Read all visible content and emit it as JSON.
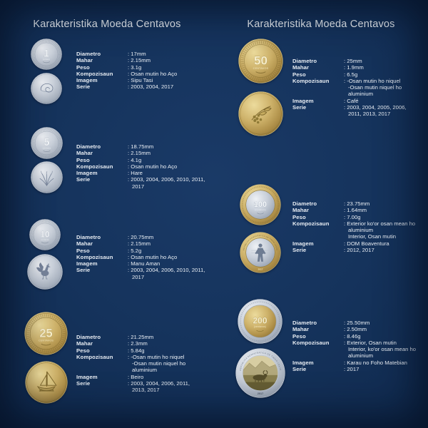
{
  "page": {
    "background_color": "#15335c",
    "title_color": "#f2f6fa",
    "silver_color": "#c6cdd7",
    "gold_color": "#cdb169"
  },
  "columns": [
    {
      "title": "Karakteristika Moeda Centavos",
      "coins": [
        {
          "id": "c1",
          "denomination": "1",
          "unit": "centavo",
          "style": "silver",
          "motif": "shell",
          "specs": [
            {
              "label": "Diametro",
              "value": ": 17mm"
            },
            {
              "label": "Mahar",
              "value": ": 2.15mm"
            },
            {
              "label": "Peso",
              "value": ": 3.1g"
            },
            {
              "label": "Kompozisaun",
              "value": ": Osan mutin ho Aço"
            },
            {
              "label": "Imagem",
              "value": ": Sipu Tasi"
            },
            {
              "label": "Serie",
              "value": ": 2003, 2004, 2017"
            }
          ]
        },
        {
          "id": "c5",
          "denomination": "5",
          "unit": "centavos",
          "style": "silver",
          "motif": "rice",
          "specs": [
            {
              "label": "Diametro",
              "value": ": 18.75mm"
            },
            {
              "label": "Mahar",
              "value": ": 2.15mm"
            },
            {
              "label": "Peso",
              "value": ": 4.1g"
            },
            {
              "label": "Kompozisaun",
              "value": ": Osan mutin ho Aço"
            },
            {
              "label": "Imagem",
              "value": ": Hare"
            },
            {
              "label": "Serie",
              "value": ": 2003, 2004, 2006, 2010, 2011,\n2017"
            }
          ]
        },
        {
          "id": "c10",
          "denomination": "10",
          "unit": "centavos",
          "style": "silver",
          "motif": "rooster",
          "specs": [
            {
              "label": "Diametro",
              "value": ": 20.75mm"
            },
            {
              "label": "Mahar",
              "value": ": 2.15mm"
            },
            {
              "label": "Peso",
              "value": ": 5.2g"
            },
            {
              "label": "Kompozisaun",
              "value": ": Osan mutin ho Aço"
            },
            {
              "label": "Imagem",
              "value": ": Manu Aman"
            },
            {
              "label": "Serie",
              "value": ": 2003, 2004, 2006, 2010, 2011,\n2017"
            }
          ]
        },
        {
          "id": "c25",
          "denomination": "25",
          "unit": "CENTAVOS",
          "style": "gold",
          "motif": "boat",
          "specs": [
            {
              "label": "Diametro",
              "value": ": 21.25mm"
            },
            {
              "label": "Mahar",
              "value": ": 2.3mm"
            },
            {
              "label": "Peso",
              "value": ": 5.84g"
            },
            {
              "label": "Kompozisaun",
              "value": ": -Osan mutin ho niquel\n-Osan mutin niquel ho\naluminium"
            },
            {
              "label": "Imagem",
              "value": ": Beiro"
            },
            {
              "label": "Serie",
              "value": ": 2003, 2004, 2006, 2011,\n2013, 2017"
            }
          ]
        }
      ]
    },
    {
      "title": "Karakteristika Moeda Centavos",
      "coins": [
        {
          "id": "c50",
          "denomination": "50",
          "unit": "CENTAVOS",
          "style": "gold",
          "motif": "coffee",
          "specs": [
            {
              "label": "Diametro",
              "value": ": 25mm"
            },
            {
              "label": "Mahar",
              "value": ": 1.9mm"
            },
            {
              "label": "Peso",
              "value": ": 6.5g"
            },
            {
              "label": "Kompozisaun",
              "value": ": -Osan mutin ho niquel\n-Osan mutin niquel ho\naluminium"
            },
            {
              "label": "Imagem",
              "value": ": Café"
            },
            {
              "label": "Serie",
              "value": ": 2003, 2004, 2005, 2006,\n2011, 2013, 2017"
            }
          ]
        },
        {
          "id": "c100",
          "denomination": "100",
          "unit": "(centavos)",
          "style": "bi-gold-ring",
          "motif": "figure",
          "rim_text": "REPÚBLICA DEMOCRÁTICA DE TIMOR-LESTE",
          "reverse_year": "2017",
          "specs": [
            {
              "label": "Diametro",
              "value": ": 23.75mm"
            },
            {
              "label": "Mahar",
              "value": ": 1.64mm"
            },
            {
              "label": "Peso",
              "value": ": 7.00g"
            },
            {
              "label": "Kompozisaun",
              "value": ": Exterior ko'or osan mean ho\naluminium\nInterior, Osan mutin"
            },
            {
              "label": "Imagem",
              "value": ": DOM Boaventura"
            },
            {
              "label": "Serie",
              "value": ": 2012, 2017"
            }
          ]
        },
        {
          "id": "c200",
          "denomination": "200",
          "unit": "(centavos)",
          "style": "bi-silver-ring",
          "motif": "buffalo",
          "rim_text": "REPÚBLICA DEMOCRÁTICA DE TIMOR-LESTE",
          "reverse_year": "2017",
          "specs": [
            {
              "label": "Diametro",
              "value": ": 25.50mm"
            },
            {
              "label": "Mahar",
              "value": ": 2.50mm"
            },
            {
              "label": "Peso",
              "value": ": 8.46g"
            },
            {
              "label": "Kompozisaun",
              "value": ": Exterior, Osan mutin\nInterior, ko'or osan mean ho\naluminium"
            },
            {
              "label": "Imagem",
              "value": ": Karau no Foho Matebian"
            },
            {
              "label": "Serie",
              "value": ": 2017"
            }
          ]
        }
      ]
    }
  ]
}
